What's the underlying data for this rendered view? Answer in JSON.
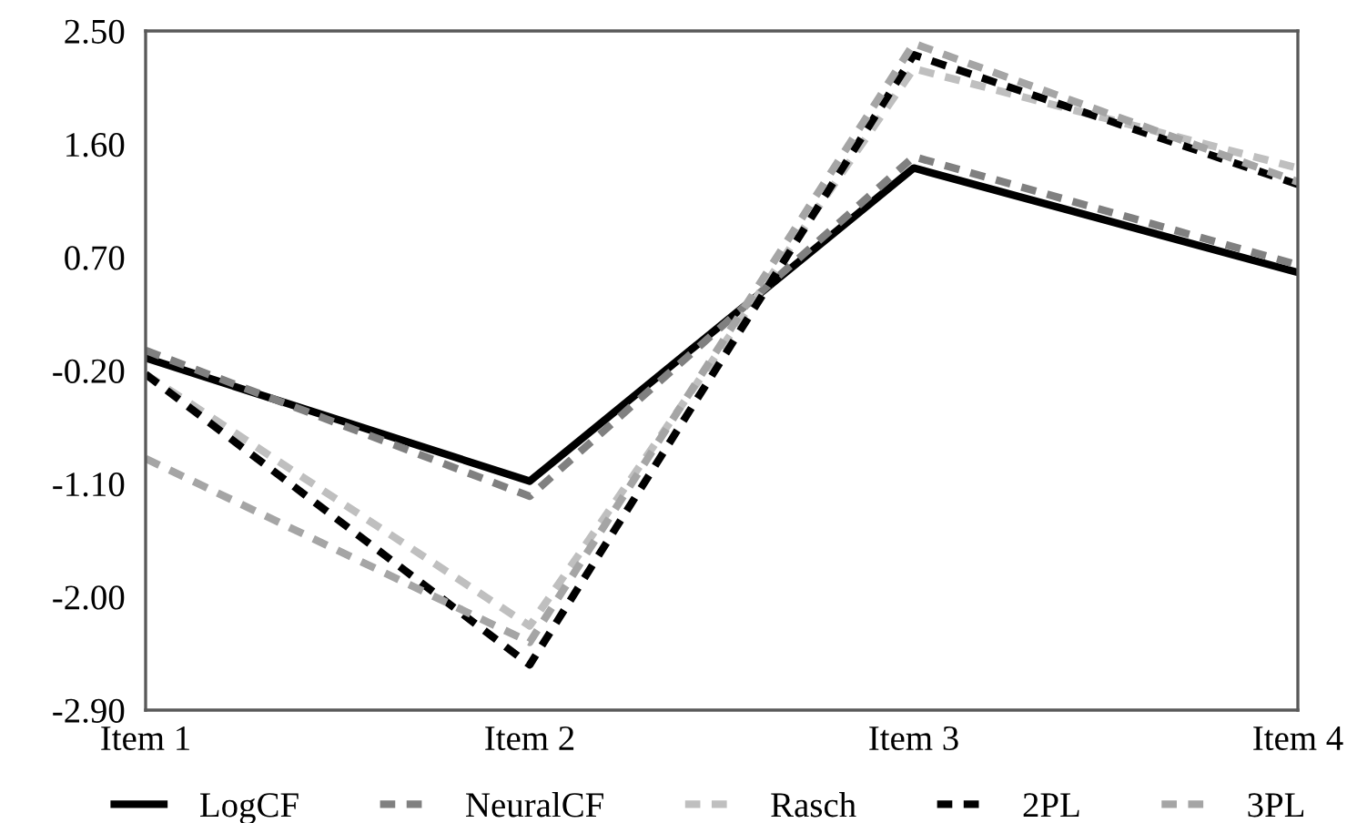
{
  "chart_data": {
    "type": "line",
    "categories": [
      "Item 1",
      "Item 2",
      "Item 3",
      "Item 4"
    ],
    "series": [
      {
        "name": "LogCF",
        "color": "#000000",
        "line_style": "solid",
        "values": [
          -0.1,
          -1.08,
          1.41,
          0.58
        ]
      },
      {
        "name": "NeuralCF",
        "color": "#808080",
        "line_style": "dashed",
        "values": [
          -0.04,
          -1.2,
          1.5,
          0.64
        ]
      },
      {
        "name": "Rasch",
        "color": "#bfbfbf",
        "line_style": "dashed",
        "values": [
          -0.23,
          -2.23,
          2.2,
          1.41
        ]
      },
      {
        "name": "2PL",
        "color": "#000000",
        "line_style": "dashed",
        "values": [
          -0.23,
          -2.54,
          2.31,
          1.28
        ]
      },
      {
        "name": "3PL",
        "color": "#a5a5a5",
        "line_style": "dashed",
        "values": [
          -0.9,
          -2.36,
          2.4,
          1.3
        ]
      }
    ],
    "ylim": [
      -2.9,
      2.5
    ],
    "yticks": [
      {
        "value": 2.5,
        "label": "2.50"
      },
      {
        "value": 1.6,
        "label": "1.60"
      },
      {
        "value": 0.7,
        "label": "0.70"
      },
      {
        "value": -0.2,
        "label": "-0.20"
      },
      {
        "value": -1.1,
        "label": "-1.10"
      },
      {
        "value": -2.0,
        "label": "-2.00"
      },
      {
        "value": -2.9,
        "label": "-2.90"
      }
    ],
    "grid": false,
    "legend": "bottom",
    "marker": "none"
  }
}
